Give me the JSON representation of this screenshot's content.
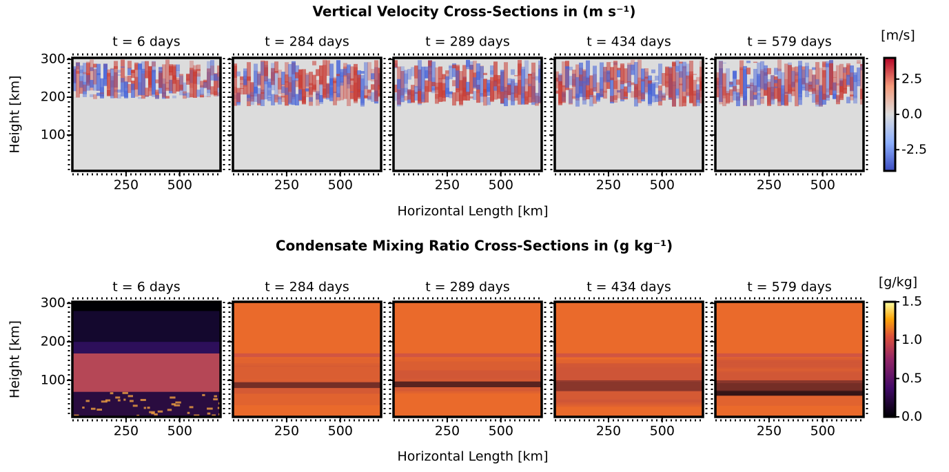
{
  "chart_data": [
    {
      "type": "heatmap",
      "title": "Vertical Velocity Cross-Sections in (m s⁻¹)",
      "panel_titles": [
        "t = 6 days",
        "t = 284 days",
        "t = 289 days",
        "t = 434 days",
        "t = 579 days"
      ],
      "xlabel": "Horizontal Length [km]",
      "ylabel": "Height [km]",
      "xlim": [
        0,
        690
      ],
      "xticks": [
        250,
        500
      ],
      "ylim": [
        5,
        304
      ],
      "yticks": [
        100,
        200,
        300
      ],
      "colorbar": {
        "label": "[m/s]",
        "lim": [
          -4,
          4
        ],
        "ticks": [
          -2.5,
          {
            "value": 0,
            "label": "0.0"
          },
          2.5
        ],
        "colormap": "coolwarm"
      }
    },
    {
      "type": "heatmap",
      "title": "Condensate Mixing Ratio Cross-Sections in (g kg⁻¹)",
      "panel_titles": [
        "t = 6 days",
        "t = 284 days",
        "t = 289 days",
        "t = 434 days",
        "t = 579 days"
      ],
      "xlabel": "Horizontal Length [km]",
      "ylabel": "Height [km]",
      "xlim": [
        0,
        690
      ],
      "xticks": [
        250,
        500
      ],
      "ylim": [
        5,
        304
      ],
      "yticks": [
        100,
        200,
        300
      ],
      "colorbar": {
        "label": "[g/kg]",
        "lim": [
          0,
          1.5
        ],
        "ticks": [
          {
            "value": 0,
            "label": "0.0"
          },
          0.5,
          {
            "value": 1,
            "label": "1.0"
          },
          1.5
        ],
        "colormap": "inferno"
      }
    }
  ]
}
